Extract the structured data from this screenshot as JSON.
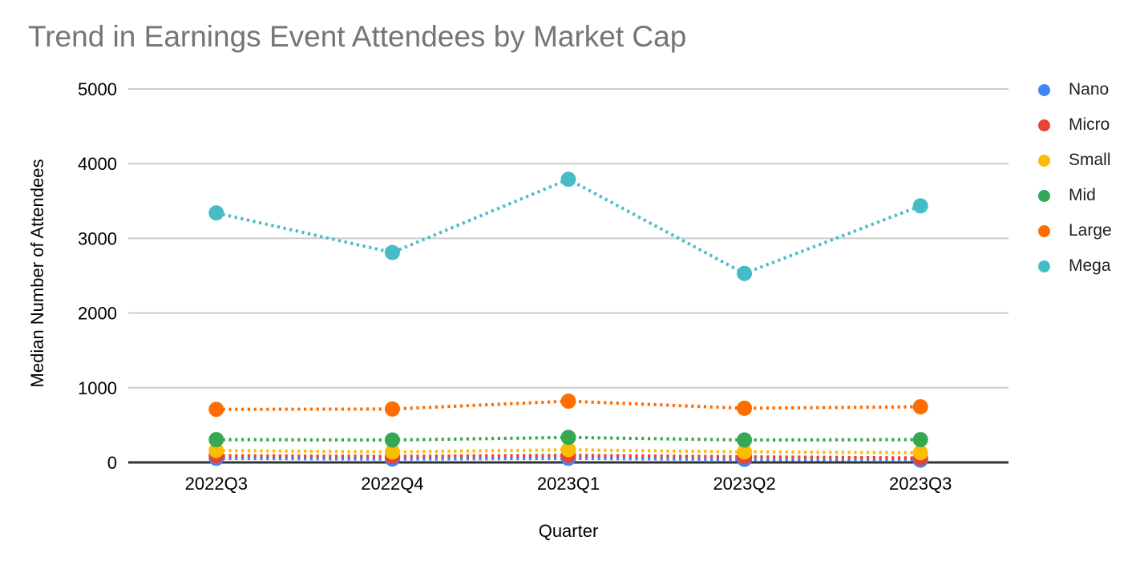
{
  "chart_data": {
    "type": "line",
    "style": "dotted lines with circular point markers",
    "title": "Trend in Earnings Event Attendees by Market Cap",
    "xlabel": "Quarter",
    "ylabel": "Median Number of Attendees",
    "categories": [
      "2022Q3",
      "2022Q4",
      "2023Q1",
      "2023Q2",
      "2023Q3"
    ],
    "series": [
      {
        "name": "Nano",
        "color": "#4285F4",
        "values": [
          55,
          45,
          55,
          40,
          30
        ]
      },
      {
        "name": "Micro",
        "color": "#EA4335",
        "values": [
          90,
          80,
          95,
          75,
          60
        ]
      },
      {
        "name": "Small",
        "color": "#FBBC04",
        "values": [
          160,
          140,
          170,
          140,
          130
        ]
      },
      {
        "name": "Mid",
        "color": "#34A853",
        "values": [
          305,
          300,
          335,
          300,
          305
        ]
      },
      {
        "name": "Large",
        "color": "#FF6D01",
        "values": [
          710,
          715,
          820,
          725,
          745
        ]
      },
      {
        "name": "Mega",
        "color": "#46BDC6",
        "values": [
          3340,
          2810,
          3790,
          2530,
          3435
        ]
      }
    ],
    "ylim": [
      0,
      5000
    ],
    "yticks": [
      0,
      1000,
      2000,
      3000,
      4000,
      5000
    ],
    "grid": true,
    "legend_position": "right",
    "colors": {
      "title": "#757575",
      "tick_label": "#000000",
      "axis_title": "#000000",
      "gridline": "#cccccc",
      "axis_line": "#333333",
      "background": "#ffffff",
      "legend_label": "#202124"
    }
  }
}
